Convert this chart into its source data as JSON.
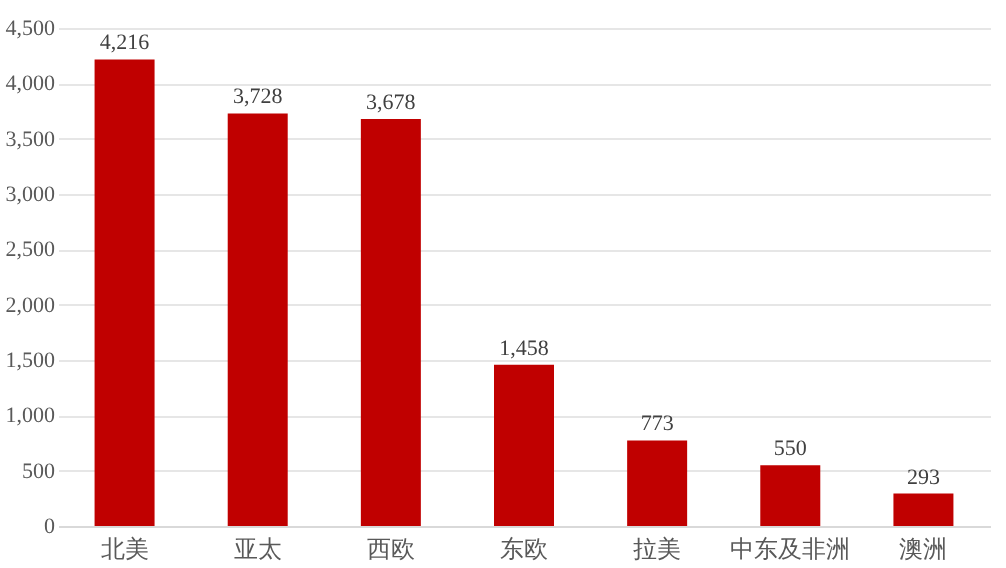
{
  "chart_data": {
    "type": "bar",
    "categories": [
      "北美",
      "亚太",
      "西欧",
      "东欧",
      "拉美",
      "中东及非洲",
      "澳洲"
    ],
    "series": [
      {
        "color": "#c00000",
        "values": [
          4216,
          3728,
          3678,
          1458,
          773,
          550,
          293
        ]
      }
    ],
    "ylim": [
      0,
      4500
    ],
    "yticks": [
      {
        "value": 0,
        "label": "0"
      },
      {
        "value": 500,
        "label": "500"
      },
      {
        "value": 1000,
        "label": "1,000"
      },
      {
        "value": 1500,
        "label": "1,500"
      },
      {
        "value": 2000,
        "label": "2,000"
      },
      {
        "value": 2500,
        "label": "2,500"
      },
      {
        "value": 3000,
        "label": "3,000"
      },
      {
        "value": 3500,
        "label": "3,500"
      },
      {
        "value": 4000,
        "label": "4,000"
      },
      {
        "value": 4500,
        "label": "4,500"
      }
    ],
    "value_labels": [
      "4,216",
      "3,728",
      "3,678",
      "1,458",
      "773",
      "550",
      "293"
    ],
    "grid": "y"
  }
}
